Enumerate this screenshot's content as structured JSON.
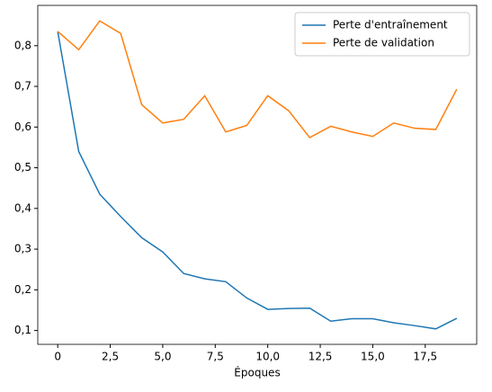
{
  "chart_data": {
    "type": "line",
    "x_label": "Époques",
    "x": [
      0,
      1,
      2,
      3,
      4,
      5,
      6,
      7,
      8,
      9,
      10,
      11,
      12,
      13,
      14,
      15,
      16,
      17,
      18,
      19
    ],
    "series": [
      {
        "name": "Perte d'entraînement",
        "color": "#1f77b4",
        "values": [
          0.835,
          0.54,
          0.435,
          0.38,
          0.328,
          0.293,
          0.24,
          0.227,
          0.22,
          0.18,
          0.152,
          0.154,
          0.155,
          0.123,
          0.129,
          0.129,
          0.119,
          0.112,
          0.104,
          0.13
        ]
      },
      {
        "name": "Perte de validation",
        "color": "#ff7f0e",
        "values": [
          0.835,
          0.79,
          0.861,
          0.83,
          0.655,
          0.61,
          0.619,
          0.677,
          0.588,
          0.604,
          0.677,
          0.64,
          0.574,
          0.602,
          0.588,
          0.577,
          0.61,
          0.597,
          0.594,
          0.693
        ]
      }
    ],
    "xlim": [
      -0.95,
      19.95
    ],
    "ylim": [
      0.066,
      0.899
    ],
    "xticks": [
      0,
      {
        "value": 2.5,
        "label": "2,5"
      },
      {
        "value": 5,
        "label": "5,0"
      },
      {
        "value": 7.5,
        "label": "7,5"
      },
      {
        "value": 10,
        "label": "10,0"
      },
      {
        "value": 12.5,
        "label": "12,5"
      },
      {
        "value": 15,
        "label": "15,0"
      },
      {
        "value": 17.5,
        "label": "17,5"
      }
    ],
    "yticks": [
      {
        "value": 0.1,
        "label": "0,1"
      },
      {
        "value": 0.2,
        "label": "0,2"
      },
      {
        "value": 0.3,
        "label": "0,3"
      },
      {
        "value": 0.4,
        "label": "0,4"
      },
      {
        "value": 0.5,
        "label": "0,5"
      },
      {
        "value": 0.6,
        "label": "0,6"
      },
      {
        "value": 0.7,
        "label": "0,7"
      },
      {
        "value": 0.8,
        "label": "0,8"
      }
    ],
    "grid": false,
    "legend": "upper-right"
  }
}
